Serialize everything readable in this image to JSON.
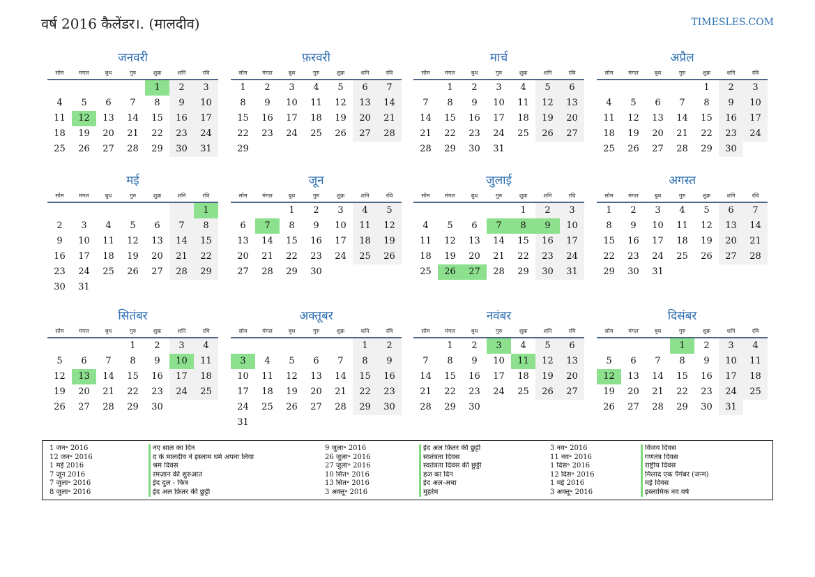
{
  "header": {
    "title": "वर्ष 2016 कैलेंडर।. (मालदीव)",
    "site": "TIMESLES.COM"
  },
  "weekdays": [
    "सोम",
    "मंगल",
    "बुध",
    "गुरु",
    "शुक्र",
    "शनि",
    "रवि"
  ],
  "months": [
    {
      "name": "जनवरी",
      "offset": 4,
      "days": 31,
      "holidays": [
        1,
        12
      ]
    },
    {
      "name": "फ़रवरी",
      "offset": 0,
      "days": 29,
      "holidays": []
    },
    {
      "name": "मार्च",
      "offset": 1,
      "days": 31,
      "holidays": []
    },
    {
      "name": "अप्रैल",
      "offset": 4,
      "days": 30,
      "holidays": []
    },
    {
      "name": "मई",
      "offset": 6,
      "days": 31,
      "holidays": [
        1
      ]
    },
    {
      "name": "जून",
      "offset": 2,
      "days": 30,
      "holidays": [
        7
      ]
    },
    {
      "name": "जुलाई",
      "offset": 4,
      "days": 31,
      "holidays": [
        7,
        8,
        9,
        26,
        27
      ]
    },
    {
      "name": "अगस्त",
      "offset": 0,
      "days": 31,
      "holidays": []
    },
    {
      "name": "सितंबर",
      "offset": 3,
      "days": 30,
      "holidays": [
        10,
        13
      ]
    },
    {
      "name": "अक्तूबर",
      "offset": 5,
      "days": 31,
      "holidays": [
        3
      ]
    },
    {
      "name": "नवंबर",
      "offset": 1,
      "days": 30,
      "holidays": [
        3,
        11
      ]
    },
    {
      "name": "दिसंबर",
      "offset": 3,
      "days": 31,
      "holidays": [
        1,
        12
      ]
    }
  ],
  "holidays": [
    {
      "date": "1 जन॰ 2016",
      "name": "नए साल का दिन"
    },
    {
      "date": "12 जन॰ 2016",
      "name": "द के मालदीव ने इस्लाम धर्म अपना लिया"
    },
    {
      "date": "1 मई 2016",
      "name": "श्रम दिवस"
    },
    {
      "date": "7 जून 2016",
      "name": "रमज़ान की शुरुआत"
    },
    {
      "date": "7 जुला॰ 2016",
      "name": "ईद दुल - फित्र"
    },
    {
      "date": "8 जुला॰ 2016",
      "name": "ईद अल फ़ितर की छुट्टी"
    },
    {
      "date": "9 जुला॰ 2016",
      "name": "ईद अल फ़ितर की छुट्टी"
    },
    {
      "date": "26 जुला॰ 2016",
      "name": "स्वतंत्रता दिवस"
    },
    {
      "date": "27 जुला॰ 2016",
      "name": "स्वतंत्रता दिवस की छुट्टी"
    },
    {
      "date": "10 सित॰ 2016",
      "name": "हज का दिन"
    },
    {
      "date": "13 सित॰ 2016",
      "name": "ईद अल-अधा"
    },
    {
      "date": "3 अक्तू॰ 2016",
      "name": "मुहर्रम"
    },
    {
      "date": "3 नव॰ 2016",
      "name": "विजय दिवस"
    },
    {
      "date": "11 नव॰ 2016",
      "name": "गणतंत्र दिवस"
    },
    {
      "date": "1 दिस॰ 2016",
      "name": "राष्ट्रीय दिवस"
    },
    {
      "date": "12 दिस॰ 2016",
      "name": "मिलाद एक पैगंबर (जन्म)"
    },
    {
      "date": "1 मई 2016",
      "name": "मई दिवस"
    },
    {
      "date": "3 अक्तू॰ 2016",
      "name": "इस्लामिक नव वर्ष"
    }
  ]
}
